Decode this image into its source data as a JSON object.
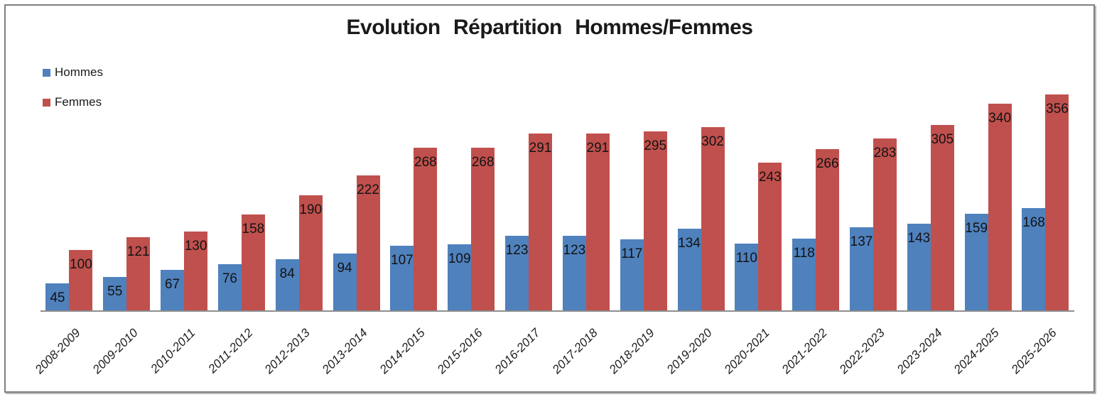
{
  "chart": {
    "frame_border_color": "#7f7f7f",
    "axis_line_color": "#8e8e8e",
    "background": "#ffffff"
  },
  "chart_data": {
    "type": "bar",
    "title": "Evolution Répartition Hommes/Femmes",
    "categories": [
      "2008-2009",
      "2009-2010",
      "2010-2011",
      "2011-2012",
      "2012-2013",
      "2013-2014",
      "2014-2015",
      "2015-2016",
      "2016-2017",
      "2017-2018",
      "2018-2019",
      "2019-2020",
      "2020-2021",
      "2021-2022",
      "2022-2023",
      "2023-2024",
      "2024-2025",
      "2025-2026"
    ],
    "series": [
      {
        "name": "Hommes",
        "color": "#4F81BD",
        "values": [
          45,
          55,
          67,
          76,
          84,
          94,
          107,
          109,
          123,
          123,
          117,
          134,
          110,
          118,
          137,
          143,
          159,
          168
        ]
      },
      {
        "name": "Femmes",
        "color": "#C0504D",
        "values": [
          100,
          121,
          130,
          158,
          190,
          222,
          268,
          268,
          291,
          291,
          295,
          302,
          243,
          266,
          283,
          305,
          340,
          356
        ]
      }
    ],
    "xlabel": "",
    "ylabel": "",
    "ylim": [
      0,
      400
    ],
    "grid": false,
    "y_axis_visible": false,
    "legend_position": "top-left",
    "data_labels": "inside-end",
    "x_tick_rotation_deg": -45
  }
}
